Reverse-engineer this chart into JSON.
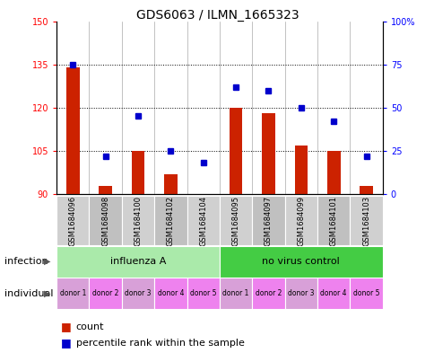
{
  "title": "GDS6063 / ILMN_1665323",
  "samples": [
    "GSM1684096",
    "GSM1684098",
    "GSM1684100",
    "GSM1684102",
    "GSM1684104",
    "GSM1684095",
    "GSM1684097",
    "GSM1684099",
    "GSM1684101",
    "GSM1684103"
  ],
  "counts": [
    134,
    93,
    105,
    97,
    90,
    120,
    118,
    107,
    105,
    93
  ],
  "percentiles": [
    75,
    22,
    45,
    25,
    18,
    62,
    60,
    50,
    42,
    22
  ],
  "infection_groups": [
    {
      "label": "influenza A",
      "start": 0,
      "end": 5,
      "color": "#AAEAAA"
    },
    {
      "label": "no virus control",
      "start": 5,
      "end": 10,
      "color": "#44CC44"
    }
  ],
  "individual_labels": [
    "donor 1",
    "donor 2",
    "donor 3",
    "donor 4",
    "donor 5",
    "donor 1",
    "donor 2",
    "donor 3",
    "donor 4",
    "donor 5"
  ],
  "individual_colors": [
    "#D8A0D8",
    "#EE82EE",
    "#D8A0D8",
    "#EE82EE",
    "#EE82EE",
    "#D8A0D8",
    "#EE82EE",
    "#D8A0D8",
    "#EE82EE",
    "#EE82EE"
  ],
  "ylim_left": [
    90,
    150
  ],
  "ylim_right": [
    0,
    100
  ],
  "yticks_left": [
    90,
    105,
    120,
    135,
    150
  ],
  "yticks_right": [
    0,
    25,
    50,
    75,
    100
  ],
  "bar_color": "#CC2200",
  "dot_color": "#0000CC",
  "background_color": "#FFFFFF",
  "grid_lines": [
    105,
    120,
    135
  ],
  "tick_label_fontsize": 7,
  "title_fontsize": 10,
  "legend_fontsize": 8,
  "row_label_fontsize": 8,
  "sample_bg_colors": [
    "#D0D0D0",
    "#C0C0C0",
    "#D0D0D0",
    "#C0C0C0",
    "#D0D0D0",
    "#D0D0D0",
    "#C0C0C0",
    "#D0D0D0",
    "#C0C0C0",
    "#D0D0D0"
  ]
}
